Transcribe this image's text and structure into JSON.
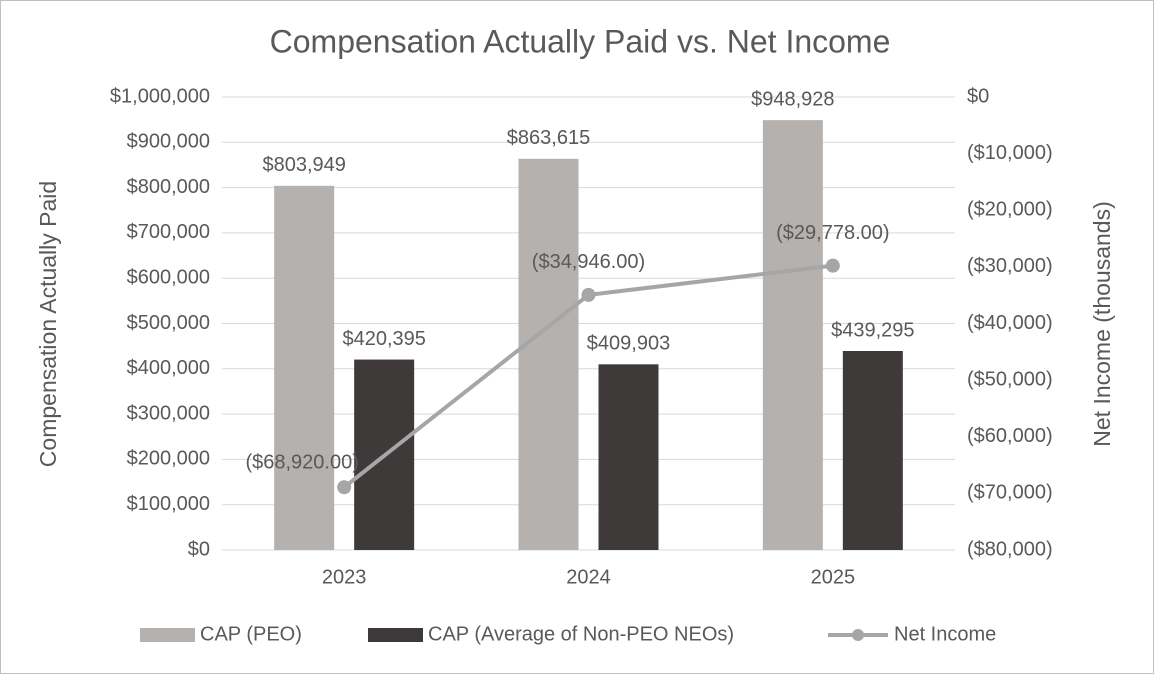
{
  "chart_data": {
    "type": "bar-line",
    "title": "Compensation Actually Paid vs. Net Income",
    "y_label": "Compensation Actually Paid",
    "y2_label": "Net Income (thousands)",
    "categories": [
      "2023",
      "2024",
      "2025"
    ],
    "series": [
      {
        "name": "CAP (PEO)",
        "type": "bar",
        "color": "#b4b1af",
        "values": [
          803949,
          863615,
          948928
        ],
        "value_labels": [
          "$803,949",
          "$863,615",
          "$948,928"
        ]
      },
      {
        "name": "CAP (Average of Non-PEO NEOs)",
        "type": "bar",
        "color": "#3e3a3a",
        "values": [
          420395,
          409903,
          439295
        ],
        "value_labels": [
          "$420,395",
          "$409,903",
          "$439,295"
        ]
      },
      {
        "name": "Net Income",
        "type": "line",
        "axis": "y2",
        "color": "#a6a6a6",
        "values": [
          -68920,
          -34946,
          -29778
        ],
        "value_labels": [
          "($68,920.00)",
          "($34,946.00)",
          "($29,778.00)"
        ]
      }
    ],
    "ylim": [
      0,
      1000000
    ],
    "yticks": [
      {
        "value": 0,
        "label": "$0"
      },
      {
        "value": 100000,
        "label": "$100,000"
      },
      {
        "value": 200000,
        "label": "$200,000"
      },
      {
        "value": 300000,
        "label": "$300,000"
      },
      {
        "value": 400000,
        "label": "$400,000"
      },
      {
        "value": 500000,
        "label": "$500,000"
      },
      {
        "value": 600000,
        "label": "$600,000"
      },
      {
        "value": 700000,
        "label": "$700,000"
      },
      {
        "value": 800000,
        "label": "$800,000"
      },
      {
        "value": 900000,
        "label": "$900,000"
      },
      {
        "value": 1000000,
        "label": "$1,000,000"
      }
    ],
    "y2lim": [
      -80000,
      0
    ],
    "y2ticks": [
      {
        "value": -80000,
        "label": "($80,000)"
      },
      {
        "value": -70000,
        "label": "($70,000)"
      },
      {
        "value": -60000,
        "label": "($60,000)"
      },
      {
        "value": -50000,
        "label": "($50,000)"
      },
      {
        "value": -40000,
        "label": "($40,000)"
      },
      {
        "value": -30000,
        "label": "($30,000)"
      },
      {
        "value": -20000,
        "label": "($20,000)"
      },
      {
        "value": -10000,
        "label": "($10,000)"
      },
      {
        "value": 0,
        "label": "$0"
      }
    ],
    "grid": true,
    "legend": "bottom"
  }
}
